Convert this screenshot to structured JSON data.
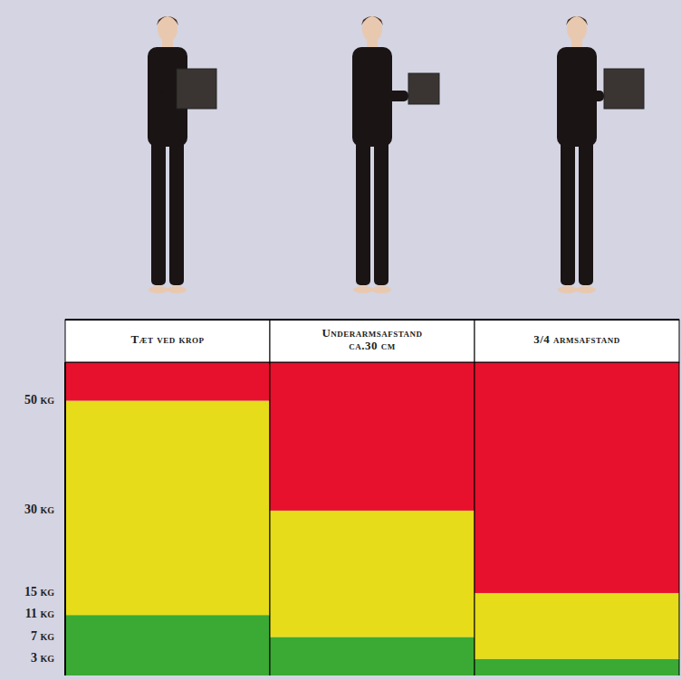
{
  "chart_data": {
    "type": "bar",
    "stacked": true,
    "categories": [
      "Tæt ved krop",
      "Underarmsafstand ca.30 cm",
      "3/4 armsafstand"
    ],
    "series": [
      {
        "color": "#3aaa35",
        "values": [
          11,
          7,
          3
        ]
      },
      {
        "color": "#e6dc1a",
        "values": [
          39,
          23,
          12
        ]
      },
      {
        "color": "#e8112d",
        "values": [
          7,
          27,
          42
        ]
      }
    ],
    "ylim": [
      0,
      57
    ],
    "yticks": [
      {
        "value": 3,
        "label": "3 kg"
      },
      {
        "value": 7,
        "label": "7 kg"
      },
      {
        "value": 11,
        "label": "11 kg"
      },
      {
        "value": 15,
        "label": "15 kg"
      },
      {
        "value": 30,
        "label": "30 kg"
      },
      {
        "value": 50,
        "label": "50 kg"
      }
    ],
    "grid": false
  }
}
